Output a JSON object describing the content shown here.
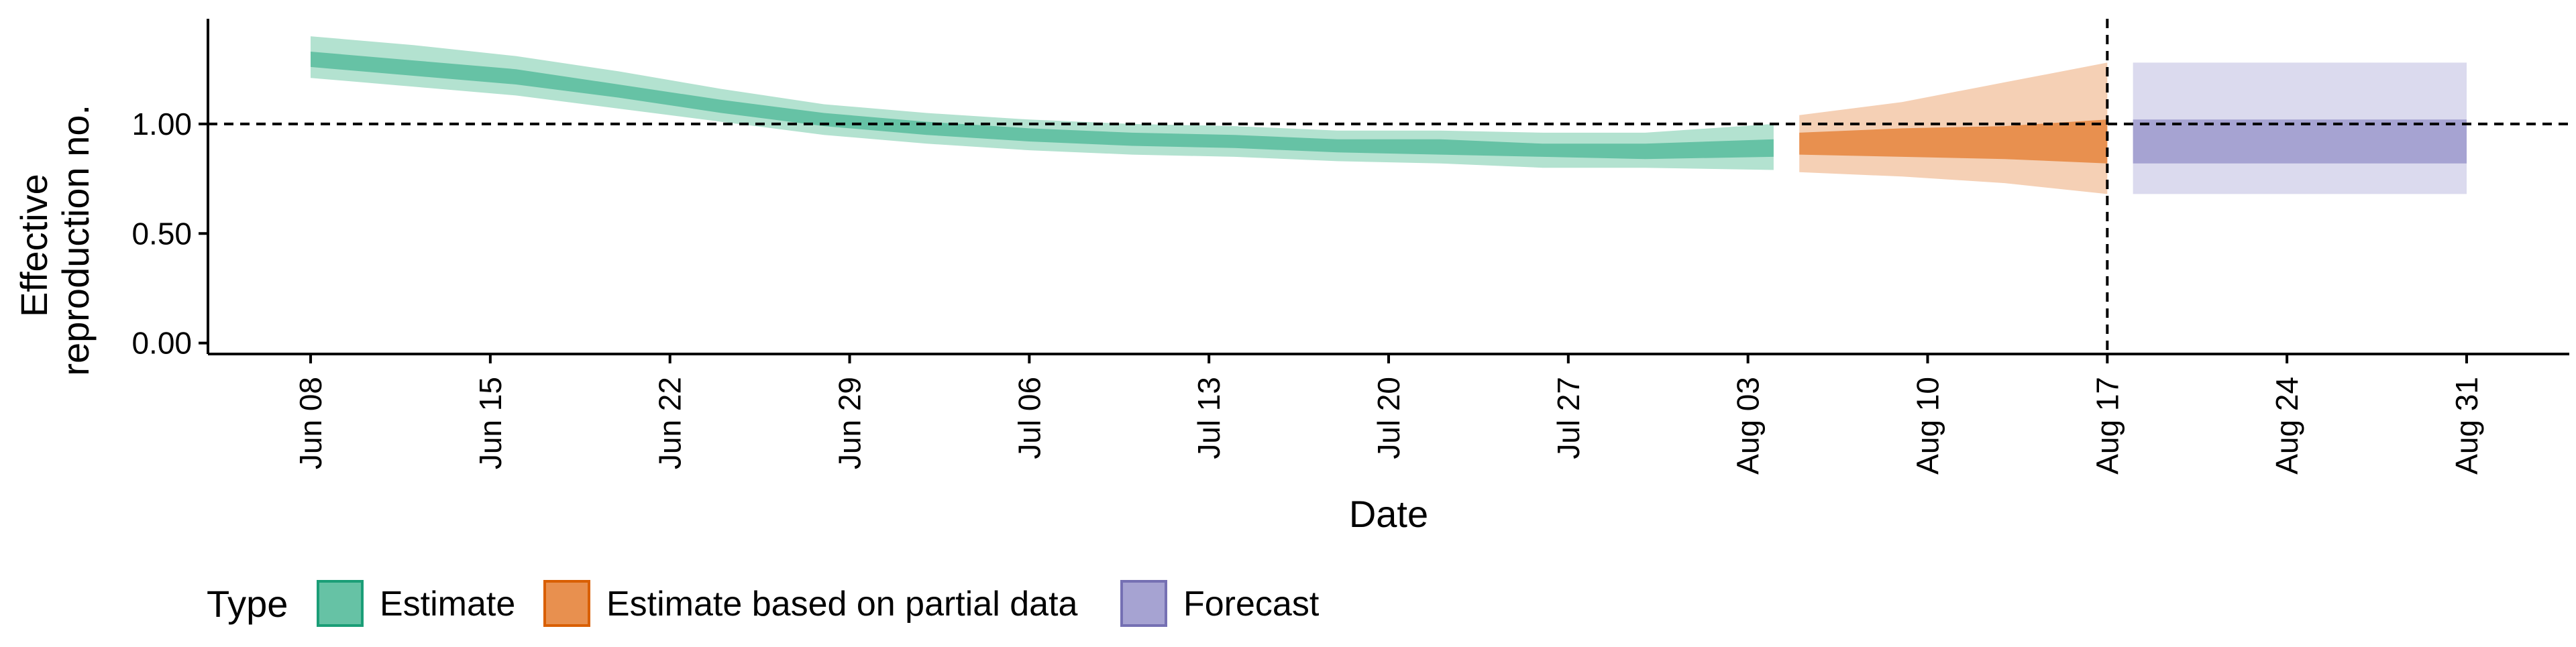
{
  "chart_data": {
    "type": "area",
    "title": "",
    "xlabel": "Date",
    "ylabel_lines": [
      "Effective",
      "reproduction no."
    ],
    "x_tick_labels": [
      {
        "date": "2020-06-08",
        "label": "Jun 08"
      },
      {
        "date": "2020-06-15",
        "label": "Jun 15"
      },
      {
        "date": "2020-06-22",
        "label": "Jun 22"
      },
      {
        "date": "2020-06-29",
        "label": "Jun 29"
      },
      {
        "date": "2020-07-06",
        "label": "Jul 06"
      },
      {
        "date": "2020-07-13",
        "label": "Jul 13"
      },
      {
        "date": "2020-07-20",
        "label": "Jul 20"
      },
      {
        "date": "2020-07-27",
        "label": "Jul 27"
      },
      {
        "date": "2020-08-03",
        "label": "Aug 03"
      },
      {
        "date": "2020-08-10",
        "label": "Aug 10"
      },
      {
        "date": "2020-08-17",
        "label": "Aug 17"
      },
      {
        "date": "2020-08-24",
        "label": "Aug 24"
      },
      {
        "date": "2020-08-31",
        "label": "Aug 31"
      }
    ],
    "y_ticks": [
      0.0,
      0.5,
      1.0
    ],
    "y_tick_labels": [
      "0.00",
      "0.50",
      "1.00"
    ],
    "xlim": [
      "2020-06-04",
      "2020-09-04"
    ],
    "ylim": [
      -0.05,
      1.48
    ],
    "reference_hline": 1.0,
    "reference_vline": "2020-08-17",
    "legend": {
      "title": "Type",
      "position": "bottom-left",
      "entries": [
        {
          "key": "estimate",
          "label": "Estimate"
        },
        {
          "key": "partial",
          "label": "Estimate based on partial data"
        },
        {
          "key": "forecast",
          "label": "Forecast"
        }
      ]
    },
    "colors": {
      "estimate": "#66c2a5",
      "estimate_outer": "#b3e2d0",
      "estimate_border": "#1b9e77",
      "partial": "#e8904f",
      "partial_outer": "#f5d0b5",
      "partial_border": "#d95f02",
      "forecast": "#a6a3d2",
      "forecast_outer": "#dbdaee",
      "forecast_border": "#7570b3"
    },
    "series": [
      {
        "key": "estimate",
        "points": [
          {
            "x": "2020-06-08",
            "median": 1.29,
            "lower50": 1.26,
            "upper50": 1.33,
            "lower90": 1.21,
            "upper90": 1.4
          },
          {
            "x": "2020-06-12",
            "median": 1.25,
            "lower50": 1.22,
            "upper50": 1.29,
            "lower90": 1.17,
            "upper90": 1.36
          },
          {
            "x": "2020-06-16",
            "median": 1.21,
            "lower50": 1.18,
            "upper50": 1.25,
            "lower90": 1.13,
            "upper90": 1.31
          },
          {
            "x": "2020-06-20",
            "median": 1.15,
            "lower50": 1.12,
            "upper50": 1.18,
            "lower90": 1.07,
            "upper90": 1.24
          },
          {
            "x": "2020-06-24",
            "median": 1.08,
            "lower50": 1.05,
            "upper50": 1.11,
            "lower90": 1.01,
            "upper90": 1.16
          },
          {
            "x": "2020-06-28",
            "median": 1.02,
            "lower50": 0.99,
            "upper50": 1.05,
            "lower90": 0.95,
            "upper90": 1.09
          },
          {
            "x": "2020-07-02",
            "median": 0.98,
            "lower50": 0.95,
            "upper50": 1.01,
            "lower90": 0.91,
            "upper90": 1.05
          },
          {
            "x": "2020-07-06",
            "median": 0.95,
            "lower50": 0.92,
            "upper50": 0.98,
            "lower90": 0.88,
            "upper90": 1.02
          },
          {
            "x": "2020-07-10",
            "median": 0.93,
            "lower50": 0.9,
            "upper50": 0.96,
            "lower90": 0.86,
            "upper90": 1.0
          },
          {
            "x": "2020-07-14",
            "median": 0.92,
            "lower50": 0.89,
            "upper50": 0.95,
            "lower90": 0.85,
            "upper90": 0.99
          },
          {
            "x": "2020-07-18",
            "median": 0.9,
            "lower50": 0.87,
            "upper50": 0.93,
            "lower90": 0.83,
            "upper90": 0.97
          },
          {
            "x": "2020-07-22",
            "median": 0.89,
            "lower50": 0.86,
            "upper50": 0.93,
            "lower90": 0.82,
            "upper90": 0.97
          },
          {
            "x": "2020-07-26",
            "median": 0.88,
            "lower50": 0.85,
            "upper50": 0.91,
            "lower90": 0.8,
            "upper90": 0.96
          },
          {
            "x": "2020-07-30",
            "median": 0.87,
            "lower50": 0.84,
            "upper50": 0.91,
            "lower90": 0.8,
            "upper90": 0.96
          },
          {
            "x": "2020-08-04",
            "median": 0.89,
            "lower50": 0.85,
            "upper50": 0.93,
            "lower90": 0.79,
            "upper90": 1.0
          }
        ]
      },
      {
        "key": "partial",
        "points": [
          {
            "x": "2020-08-05",
            "median": 0.91,
            "lower50": 0.86,
            "upper50": 0.96,
            "lower90": 0.78,
            "upper90": 1.04
          },
          {
            "x": "2020-08-09",
            "median": 0.91,
            "lower50": 0.85,
            "upper50": 0.98,
            "lower90": 0.76,
            "upper90": 1.1
          },
          {
            "x": "2020-08-13",
            "median": 0.91,
            "lower50": 0.84,
            "upper50": 0.99,
            "lower90": 0.73,
            "upper90": 1.19
          },
          {
            "x": "2020-08-17",
            "median": 0.91,
            "lower50": 0.82,
            "upper50": 1.02,
            "lower90": 0.68,
            "upper90": 1.28
          }
        ]
      },
      {
        "key": "forecast",
        "points": [
          {
            "x": "2020-08-18",
            "median": 0.91,
            "lower50": 0.82,
            "upper50": 1.02,
            "lower90": 0.68,
            "upper90": 1.28
          },
          {
            "x": "2020-08-31",
            "median": 0.91,
            "lower50": 0.82,
            "upper50": 1.02,
            "lower90": 0.68,
            "upper90": 1.28
          }
        ]
      }
    ]
  }
}
